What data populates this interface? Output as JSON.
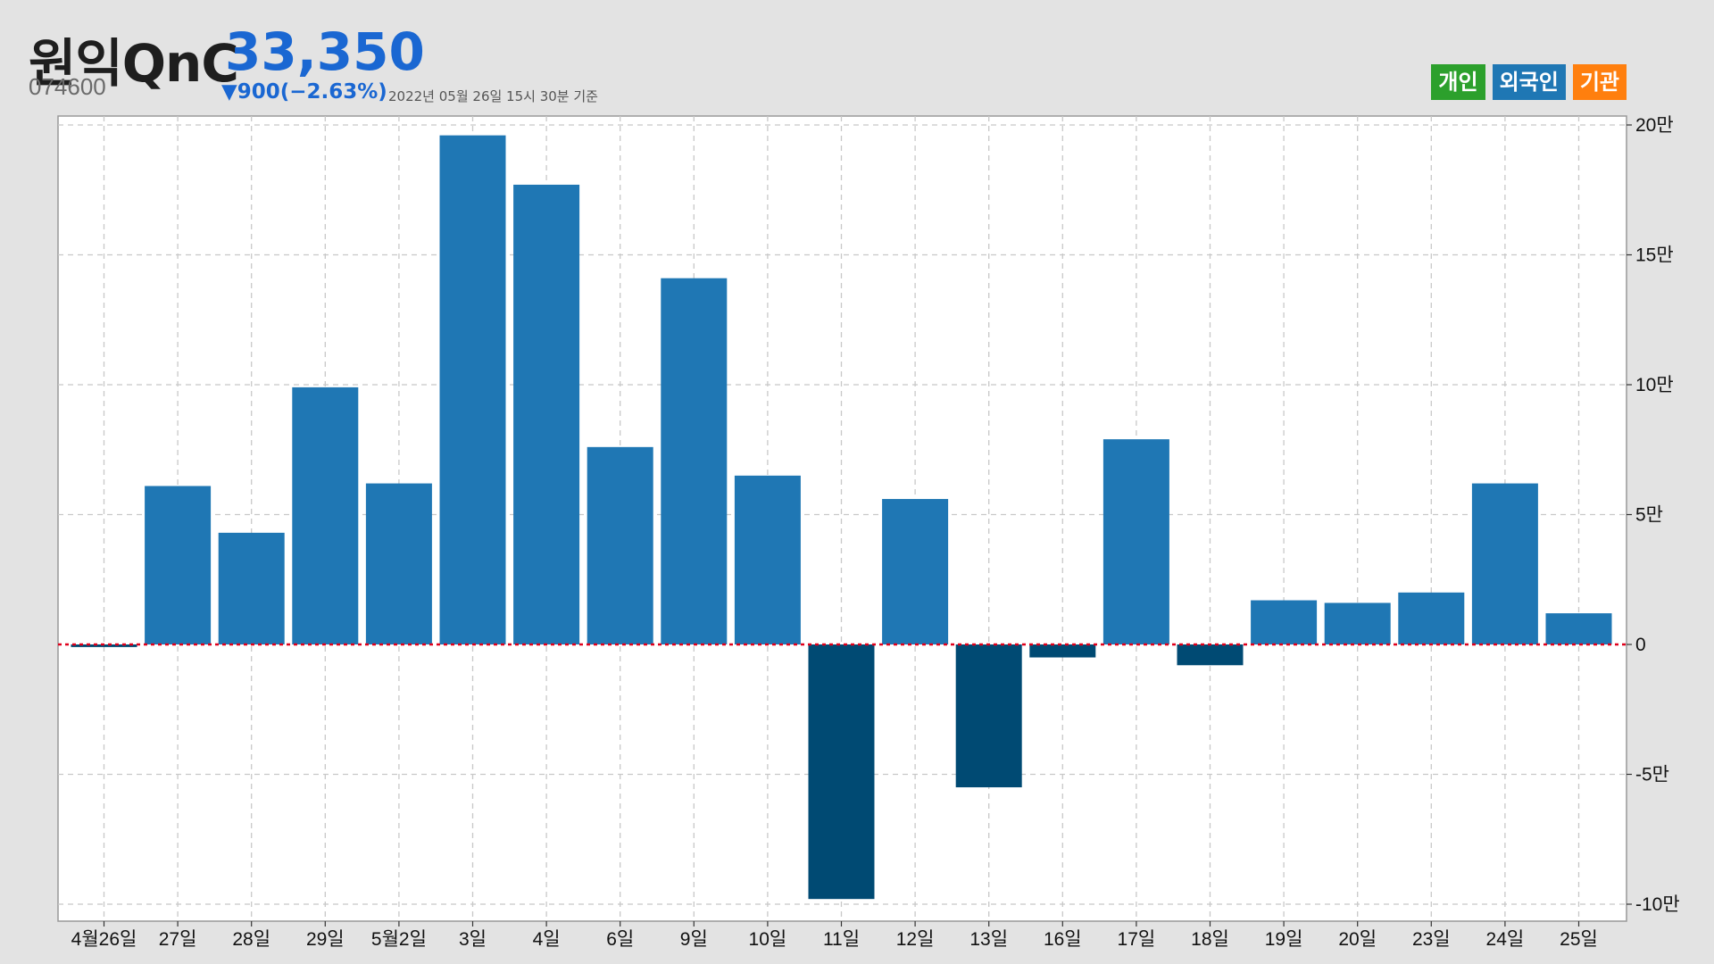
{
  "header": {
    "name": "원익QnC",
    "price": "33,350",
    "code": "074600",
    "change": "▼900(−2.63%)",
    "as_of": "2022년 05월 26일 15시 30분 기준"
  },
  "legend": {
    "items": [
      {
        "label": "개인",
        "color": "#2ca02c"
      },
      {
        "label": "외국인",
        "color": "#1f77b4"
      },
      {
        "label": "기관",
        "color": "#ff7f0e"
      }
    ]
  },
  "chart_data": {
    "type": "bar",
    "title": "",
    "xlabel": "",
    "ylabel": "",
    "categories": [
      "4월26일",
      "27일",
      "28일",
      "29일",
      "5월2일",
      "3일",
      "4일",
      "6일",
      "9일",
      "10일",
      "11일",
      "12일",
      "13일",
      "16일",
      "17일",
      "18일",
      "19일",
      "20일",
      "23일",
      "24일",
      "25일"
    ],
    "series": [
      {
        "name": "외국인",
        "values": [
          -1000,
          61000,
          43000,
          99000,
          62000,
          196000,
          177000,
          76000,
          141000,
          65000,
          -98000,
          56000,
          -55000,
          -5000,
          79000,
          -8000,
          17000,
          16000,
          20000,
          62000,
          12000
        ]
      }
    ],
    "ylim": [
      -100000,
      200000
    ],
    "yticks": [
      200000,
      150000,
      100000,
      50000,
      0,
      -50000,
      -100000
    ],
    "ytick_labels": [
      "20만",
      "15만",
      "10만",
      "5만",
      "0",
      "-5만",
      "-10만"
    ],
    "colors": {
      "positive": "#1f77b4",
      "negative": "#004a73",
      "zero_line": "#e0001b",
      "grid": "#c8c8c8"
    },
    "grid": true,
    "y_axis_side": "right",
    "legend_position": "top-right"
  }
}
